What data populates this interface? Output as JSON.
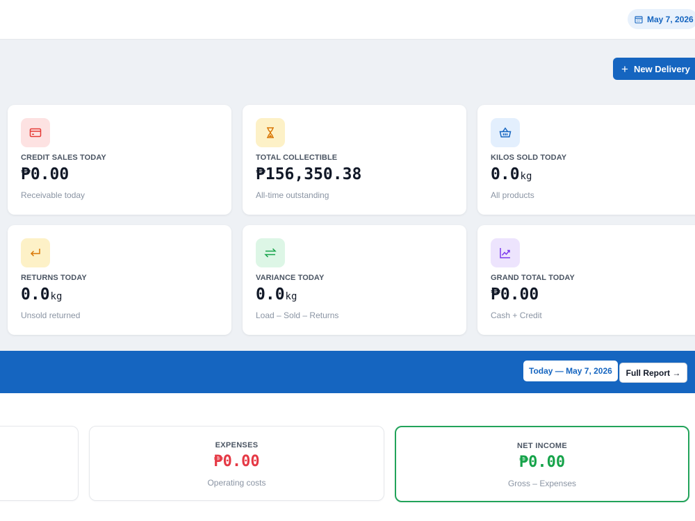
{
  "header": {
    "date": "May 7, 2026"
  },
  "actions": {
    "new_delivery": "New Delivery"
  },
  "cards": [
    {
      "label": "CREDIT SALES TODAY",
      "value": "₱0.00",
      "unit": "",
      "sub": "Receivable today",
      "icon": "credit-card-icon",
      "icon_bg": "#fde2e2",
      "icon_color": "#e53935"
    },
    {
      "label": "TOTAL COLLECTIBLE",
      "value": "₱156,350.38",
      "unit": "",
      "sub": "All-time outstanding",
      "icon": "hourglass-icon",
      "icon_bg": "#fdf1c7",
      "icon_color": "#d97706"
    },
    {
      "label": "KILOS SOLD TODAY",
      "value": "0.0",
      "unit": "kg",
      "sub": "All products",
      "icon": "basket-icon",
      "icon_bg": "#e3effd",
      "icon_color": "#1565c0"
    },
    {
      "label": "RETURNS TODAY",
      "value": "0.0",
      "unit": "kg",
      "sub": "Unsold returned",
      "icon": "return-arrow-icon",
      "icon_bg": "#fdf1c7",
      "icon_color": "#d97706"
    },
    {
      "label": "VARIANCE TODAY",
      "value": "0.0",
      "unit": "kg",
      "sub": "Load – Sold – Returns",
      "icon": "swap-arrows-icon",
      "icon_bg": "#ddf6e6",
      "icon_color": "#16a34a"
    },
    {
      "label": "GRAND TOTAL TODAY",
      "value": "₱0.00",
      "unit": "",
      "sub": "Cash + Credit",
      "icon": "trend-chart-icon",
      "icon_bg": "#ede4fd",
      "icon_color": "#7c3aed"
    }
  ],
  "report": {
    "period": "Today — May 7, 2026",
    "full_report": "Full Report →"
  },
  "stats": [
    {
      "label": "EXPENSES",
      "value": "₱0.00",
      "sub": "Operating costs",
      "color": "#e53945"
    },
    {
      "label": "NET INCOME",
      "value": "₱0.00",
      "sub": "Gross – Expenses",
      "color": "#16a34a"
    }
  ],
  "colors": {
    "primary": "#1565c0",
    "success": "#22a35a",
    "danger": "#e53945"
  }
}
